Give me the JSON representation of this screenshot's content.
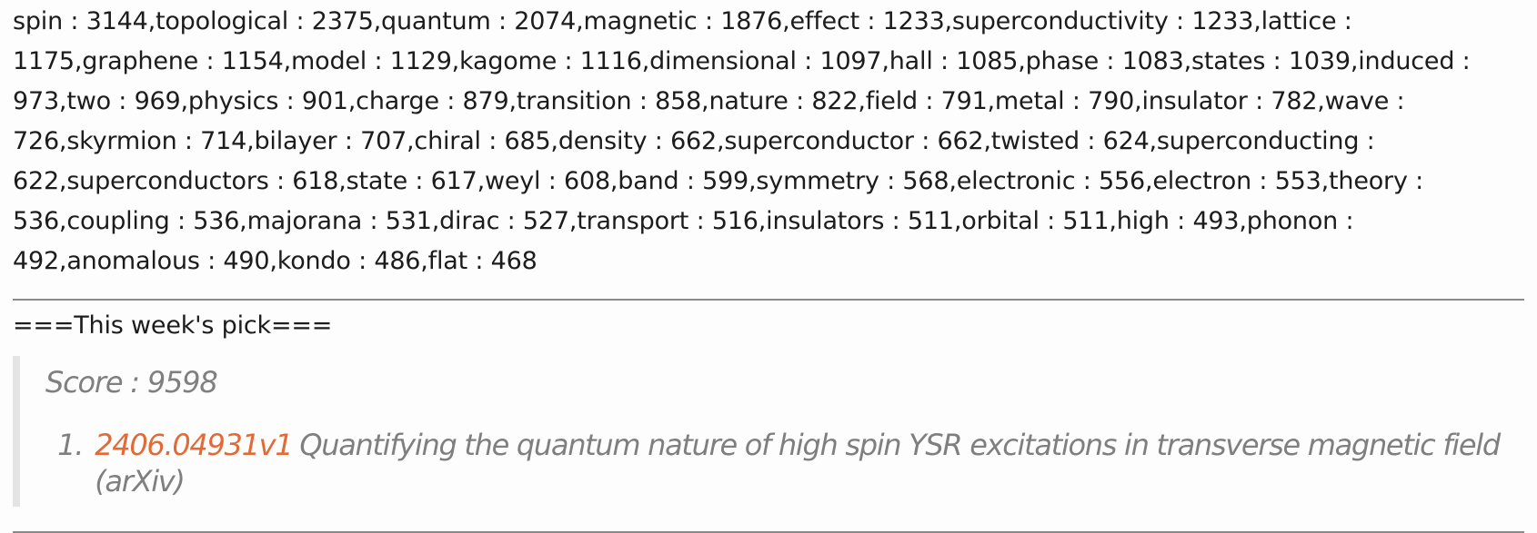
{
  "word_frequencies": "spin : 3144,topological : 2375,quantum : 2074,magnetic : 1876,effect : 1233,superconductivity : 1233,lattice : 1175,graphene : 1154,model : 1129,kagome : 1116,dimensional : 1097,hall : 1085,phase : 1083,states : 1039,induced : 973,two : 969,physics : 901,charge : 879,transition : 858,nature : 822,field : 791,metal : 790,insulator : 782,wave : 726,skyrmion : 714,bilayer : 707,chiral : 685,density : 662,superconductor : 662,twisted : 624,superconducting : 622,superconductors : 618,state : 617,weyl : 608,band : 599,symmetry : 568,electronic : 556,electron : 553,theory : 536,coupling : 536,majorana : 531,dirac : 527,transport : 516,insulators : 511,orbital : 511,high : 493,phonon : 492,anomalous : 490,kondo : 486,flat : 468",
  "pick": {
    "heading": "===This week's pick===",
    "score_text": "Score : 9598",
    "items": [
      {
        "number": "1.",
        "arxiv_id": "2406.04931v1",
        "title": "Quantifying the quantum nature of high spin YSR excitations in transverse magnetic field (arXiv)"
      }
    ]
  },
  "colors": {
    "link": "#e26b35",
    "quote_text": "#7f7f7f",
    "quote_border": "#e4e4e4"
  }
}
